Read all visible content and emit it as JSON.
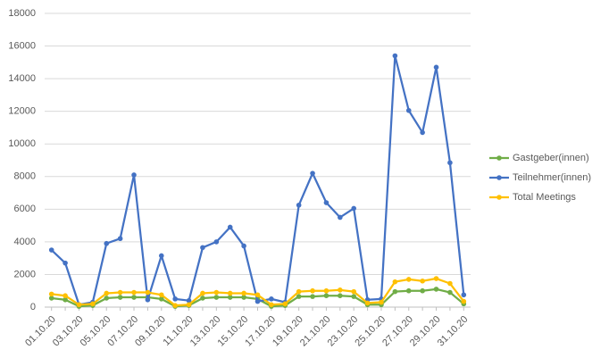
{
  "chart_data": {
    "type": "line",
    "categories": [
      "01.10.20",
      null,
      "03.10.20",
      null,
      "05.10.20",
      null,
      "07.10.20",
      null,
      "09.10.20",
      null,
      "11.10.20",
      null,
      "13.10.20",
      null,
      "15.10.20",
      null,
      "17.10.20",
      null,
      "19.10.20",
      null,
      "21.10.20",
      null,
      "23.10.20",
      null,
      "25.10.20",
      null,
      "27.10.20",
      null,
      "29.10.20",
      null,
      "31.10.20"
    ],
    "series": [
      {
        "name": "Gastgeber(innen)",
        "color": "#70ad47",
        "values": [
          550,
          450,
          50,
          100,
          550,
          600,
          600,
          600,
          500,
          50,
          100,
          550,
          600,
          600,
          600,
          500,
          50,
          100,
          650,
          650,
          700,
          700,
          650,
          150,
          150,
          950,
          1000,
          1000,
          1100,
          900,
          200
        ]
      },
      {
        "name": "Teilnehmer(innen)",
        "color": "#4472c4",
        "values": [
          3500,
          2700,
          150,
          300,
          3900,
          4200,
          8100,
          450,
          3150,
          500,
          400,
          3650,
          4000,
          4900,
          3750,
          350,
          500,
          300,
          6250,
          8200,
          6400,
          5500,
          6050,
          450,
          500,
          15400,
          12050,
          10700,
          14700,
          8850,
          750
        ]
      },
      {
        "name": "Total Meetings",
        "color": "#ffc000",
        "values": [
          800,
          700,
          150,
          200,
          850,
          900,
          900,
          900,
          750,
          100,
          150,
          850,
          900,
          850,
          850,
          750,
          150,
          200,
          950,
          1000,
          1000,
          1050,
          950,
          250,
          300,
          1550,
          1700,
          1600,
          1750,
          1450,
          350
        ]
      }
    ],
    "ylim": [
      0,
      18000
    ],
    "yticks": [
      0,
      2000,
      4000,
      6000,
      8000,
      10000,
      12000,
      14000,
      16000,
      18000
    ],
    "grid": true,
    "legend": "right"
  }
}
